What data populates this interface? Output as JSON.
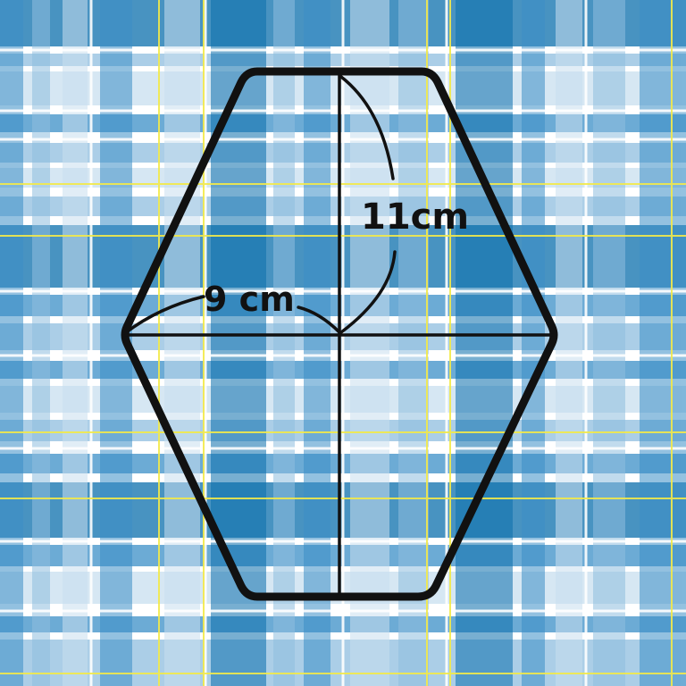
{
  "diagram": {
    "shape": "hexagon",
    "labels": {
      "height": "11cm",
      "width": "9 cm"
    }
  },
  "colors": {
    "tartan_base": "#ffffff",
    "tartan_dark": "#0b6fad",
    "tartan_mid": "#3c8fc7",
    "tartan_light": "#8fbedf",
    "tartan_pale": "#c9dff0",
    "tartan_yellow": "#f3ea4a",
    "outline": "#111111"
  }
}
